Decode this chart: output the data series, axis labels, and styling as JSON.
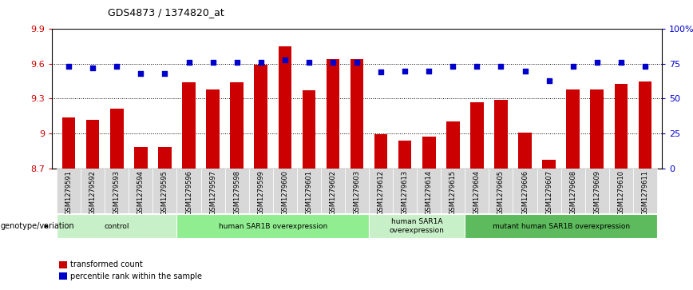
{
  "title": "GDS4873 / 1374820_at",
  "samples": [
    "GSM1279591",
    "GSM1279592",
    "GSM1279593",
    "GSM1279594",
    "GSM1279595",
    "GSM1279596",
    "GSM1279597",
    "GSM1279598",
    "GSM1279599",
    "GSM1279600",
    "GSM1279601",
    "GSM1279602",
    "GSM1279603",
    "GSM1279612",
    "GSM1279613",
    "GSM1279614",
    "GSM1279615",
    "GSM1279604",
    "GSM1279605",
    "GSM1279606",
    "GSM1279607",
    "GSM1279608",
    "GSM1279609",
    "GSM1279610",
    "GSM1279611"
  ],
  "bar_values": [
    9.14,
    9.12,
    9.21,
    8.88,
    8.88,
    9.44,
    9.38,
    9.44,
    9.59,
    9.75,
    9.37,
    9.64,
    9.64,
    8.99,
    8.94,
    8.97,
    9.1,
    9.27,
    9.29,
    9.01,
    8.77,
    9.38,
    9.38,
    9.43,
    9.45
  ],
  "percentile_values": [
    73,
    72,
    73,
    68,
    68,
    76,
    76,
    76,
    76,
    78,
    76,
    76,
    76,
    69,
    70,
    70,
    73,
    73,
    73,
    70,
    63,
    73,
    76,
    76,
    73
  ],
  "groups": [
    {
      "label": "control",
      "start": 0,
      "end": 5,
      "color": "#c8f0c8"
    },
    {
      "label": "human SAR1B overexpression",
      "start": 5,
      "end": 13,
      "color": "#90ee90"
    },
    {
      "label": "human SAR1A\noverexpression",
      "start": 13,
      "end": 17,
      "color": "#c8f0c8"
    },
    {
      "label": "mutant human SAR1B overexpression",
      "start": 17,
      "end": 25,
      "color": "#5dbb5d"
    }
  ],
  "ylim_left": [
    8.7,
    9.9
  ],
  "ylim_right": [
    0,
    100
  ],
  "yticks_left": [
    8.7,
    9.0,
    9.3,
    9.6,
    9.9
  ],
  "ytick_labels_left": [
    "8.7",
    "9",
    "9.3",
    "9.6",
    "9.9"
  ],
  "yticks_right": [
    0,
    25,
    50,
    75,
    100
  ],
  "ytick_labels_right": [
    "0",
    "25",
    "50",
    "75",
    "100%"
  ],
  "bar_color": "#cc0000",
  "dot_color": "#0000cc",
  "genotype_label": "genotype/variation",
  "legend_bar": "transformed count",
  "legend_dot": "percentile rank within the sample"
}
